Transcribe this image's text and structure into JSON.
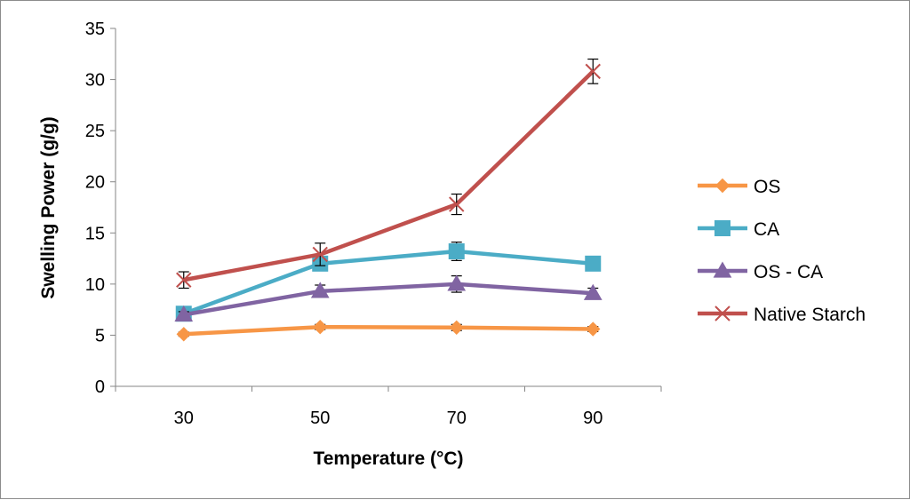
{
  "chart_data": {
    "type": "line",
    "title": "",
    "xlabel": "Temperature (°C)",
    "ylabel": "Swelling Power (g/g)",
    "categories": [
      "30",
      "50",
      "70",
      "90"
    ],
    "ylim": [
      0,
      35
    ],
    "yticks": [
      "0",
      "5",
      "10",
      "15",
      "20",
      "25",
      "30",
      "35"
    ],
    "grid": false,
    "legend_position": "right",
    "series": [
      {
        "name": "OS",
        "values": [
          5.1,
          5.8,
          5.75,
          5.6
        ],
        "color": "#f79646",
        "marker": "diamond",
        "errors": [
          0.2,
          0.25,
          0.3,
          0.25
        ]
      },
      {
        "name": "CA",
        "values": [
          7.1,
          12.0,
          13.2,
          12.0
        ],
        "color": "#4bacc6",
        "marker": "square",
        "errors": [
          0.3,
          0.5,
          0.9,
          0.3
        ]
      },
      {
        "name": "OS - CA",
        "values": [
          7.0,
          9.3,
          10.0,
          9.1
        ],
        "color": "#8064a2",
        "marker": "triangle",
        "errors": [
          0.3,
          0.6,
          0.8,
          0.5
        ]
      },
      {
        "name": "Native Starch",
        "values": [
          10.4,
          12.9,
          17.8,
          30.8
        ],
        "color": "#c0504d",
        "marker": "x",
        "errors": [
          0.8,
          1.1,
          1.0,
          1.2
        ]
      }
    ]
  }
}
